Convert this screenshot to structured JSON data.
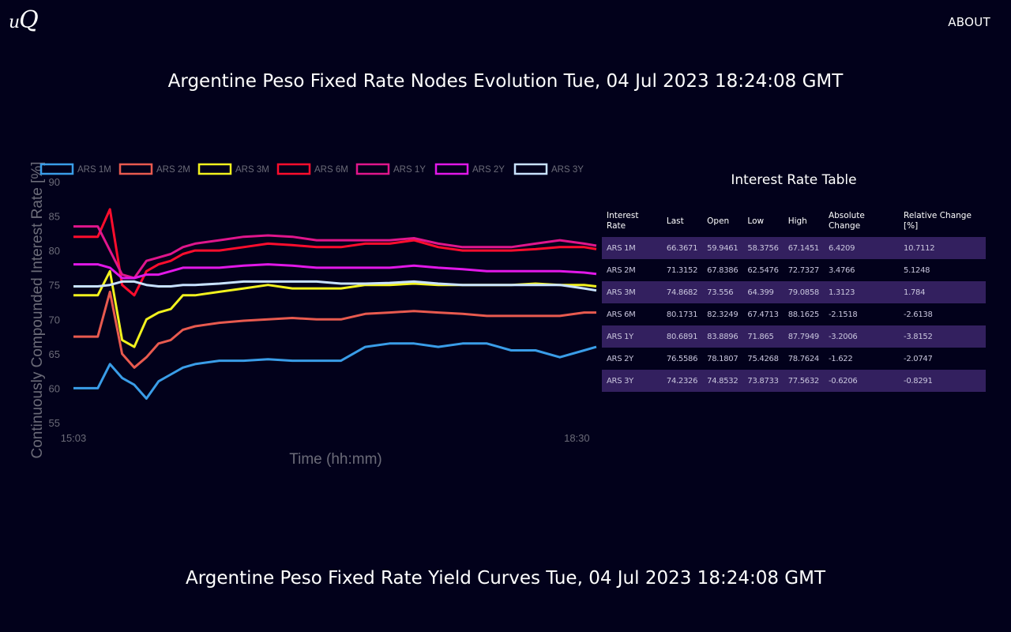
{
  "nav": {
    "logo_main": "u",
    "logo_big": "Q",
    "about_label": "ABOUT"
  },
  "titles": {
    "nodes": "Argentine Peso Fixed Rate Nodes Evolution Tue, 04 Jul 2023 18:24:08 GMT",
    "curves": "Argentine Peso Fixed Rate Yield Curves Tue, 04 Jul 2023 18:24:08 GMT"
  },
  "table": {
    "title": "Interest Rate Table",
    "headers": [
      "Interest Rate",
      "Last",
      "Open",
      "Low",
      "High",
      "Absolute Change",
      "Relative Change [%]"
    ],
    "rows": [
      [
        "ARS 1M",
        "66.3671",
        "59.9461",
        "58.3756",
        "67.1451",
        "6.4209",
        "10.7112"
      ],
      [
        "ARS 2M",
        "71.3152",
        "67.8386",
        "62.5476",
        "72.7327",
        "3.4766",
        "5.1248"
      ],
      [
        "ARS 3M",
        "74.8682",
        "73.556",
        "64.399",
        "79.0858",
        "1.3123",
        "1.784"
      ],
      [
        "ARS 6M",
        "80.1731",
        "82.3249",
        "67.4713",
        "88.1625",
        "-2.1518",
        "-2.6138"
      ],
      [
        "ARS 1Y",
        "80.6891",
        "83.8896",
        "71.865",
        "87.7949",
        "-3.2006",
        "-3.8152"
      ],
      [
        "ARS 2Y",
        "76.5586",
        "78.1807",
        "75.4268",
        "78.7624",
        "-1.622",
        "-2.0747"
      ],
      [
        "ARS 3Y",
        "74.2326",
        "74.8532",
        "73.8733",
        "77.5632",
        "-0.6206",
        "-0.8291"
      ]
    ]
  },
  "chart_data": {
    "type": "line",
    "xlabel": "Time (hh:mm)",
    "ylabel": "Continuously Compounded Interest Rate [%]",
    "ylim": [
      55,
      90
    ],
    "yticks": [
      55,
      60,
      65,
      70,
      75,
      80,
      85,
      90
    ],
    "xlim": [
      "15:03",
      "18:38"
    ],
    "xticks": [
      "15:03",
      "18:30"
    ],
    "grid": false,
    "legend": "top",
    "x": [
      "15:03",
      "15:13",
      "15:18",
      "15:23",
      "15:28",
      "15:33",
      "15:38",
      "15:43",
      "15:48",
      "15:53",
      "16:03",
      "16:13",
      "16:23",
      "16:33",
      "16:43",
      "16:53",
      "17:03",
      "17:13",
      "17:23",
      "17:33",
      "17:43",
      "17:53",
      "18:03",
      "18:13",
      "18:23",
      "18:33",
      "18:38"
    ],
    "series": [
      {
        "name": "ARS 1M",
        "color": "#3a9de8",
        "values": [
          60.0,
          60.0,
          63.5,
          61.5,
          60.5,
          58.5,
          61.0,
          62.0,
          63.0,
          63.5,
          64.0,
          64.0,
          64.2,
          64.0,
          64.0,
          64.0,
          66.0,
          66.5,
          66.5,
          66.0,
          66.5,
          66.5,
          65.5,
          65.5,
          64.5,
          65.5,
          66.0
        ]
      },
      {
        "name": "ARS 2M",
        "color": "#e85a4f",
        "values": [
          67.5,
          67.5,
          74.0,
          65.0,
          63.0,
          64.5,
          66.5,
          67.0,
          68.5,
          69.0,
          69.5,
          69.8,
          70.0,
          70.2,
          70.0,
          70.0,
          70.8,
          71.0,
          71.2,
          71.0,
          70.8,
          70.5,
          70.5,
          70.5,
          70.5,
          71.0,
          71.0
        ]
      },
      {
        "name": "ARS 3M",
        "color": "#f2f21e",
        "values": [
          73.5,
          73.5,
          77.0,
          67.0,
          66.0,
          70.0,
          71.0,
          71.5,
          73.5,
          73.5,
          74.0,
          74.5,
          75.0,
          74.5,
          74.5,
          74.5,
          75.0,
          75.0,
          75.2,
          75.0,
          75.0,
          75.0,
          75.0,
          75.2,
          75.0,
          75.0,
          74.8
        ]
      },
      {
        "name": "ARS 6M",
        "color": "#ff0d2d",
        "values": [
          82.0,
          82.0,
          86.0,
          75.0,
          73.5,
          77.0,
          78.0,
          78.5,
          79.5,
          80.0,
          80.0,
          80.5,
          81.0,
          80.8,
          80.5,
          80.5,
          81.0,
          81.0,
          81.5,
          80.5,
          80.0,
          80.0,
          80.0,
          80.2,
          80.5,
          80.5,
          80.2
        ]
      },
      {
        "name": "ARS 1Y",
        "color": "#e0168c",
        "values": [
          83.5,
          83.5,
          80.0,
          76.5,
          76.0,
          78.5,
          79.0,
          79.5,
          80.5,
          81.0,
          81.5,
          82.0,
          82.2,
          82.0,
          81.5,
          81.5,
          81.5,
          81.5,
          81.8,
          81.0,
          80.5,
          80.5,
          80.5,
          81.0,
          81.5,
          81.0,
          80.7
        ]
      },
      {
        "name": "ARS 2Y",
        "color": "#e118e8",
        "values": [
          78.0,
          78.0,
          77.5,
          76.0,
          76.0,
          76.5,
          76.5,
          77.0,
          77.5,
          77.5,
          77.5,
          77.8,
          78.0,
          77.8,
          77.5,
          77.5,
          77.5,
          77.5,
          77.8,
          77.5,
          77.3,
          77.0,
          77.0,
          77.0,
          77.0,
          76.8,
          76.6
        ]
      },
      {
        "name": "ARS 3Y",
        "color": "#c8e2ff",
        "values": [
          74.8,
          74.8,
          75.0,
          75.5,
          75.5,
          75.0,
          74.8,
          74.8,
          75.0,
          75.0,
          75.2,
          75.5,
          75.5,
          75.5,
          75.5,
          75.2,
          75.2,
          75.3,
          75.5,
          75.2,
          75.0,
          75.0,
          75.0,
          75.0,
          75.0,
          74.5,
          74.2
        ]
      }
    ]
  }
}
